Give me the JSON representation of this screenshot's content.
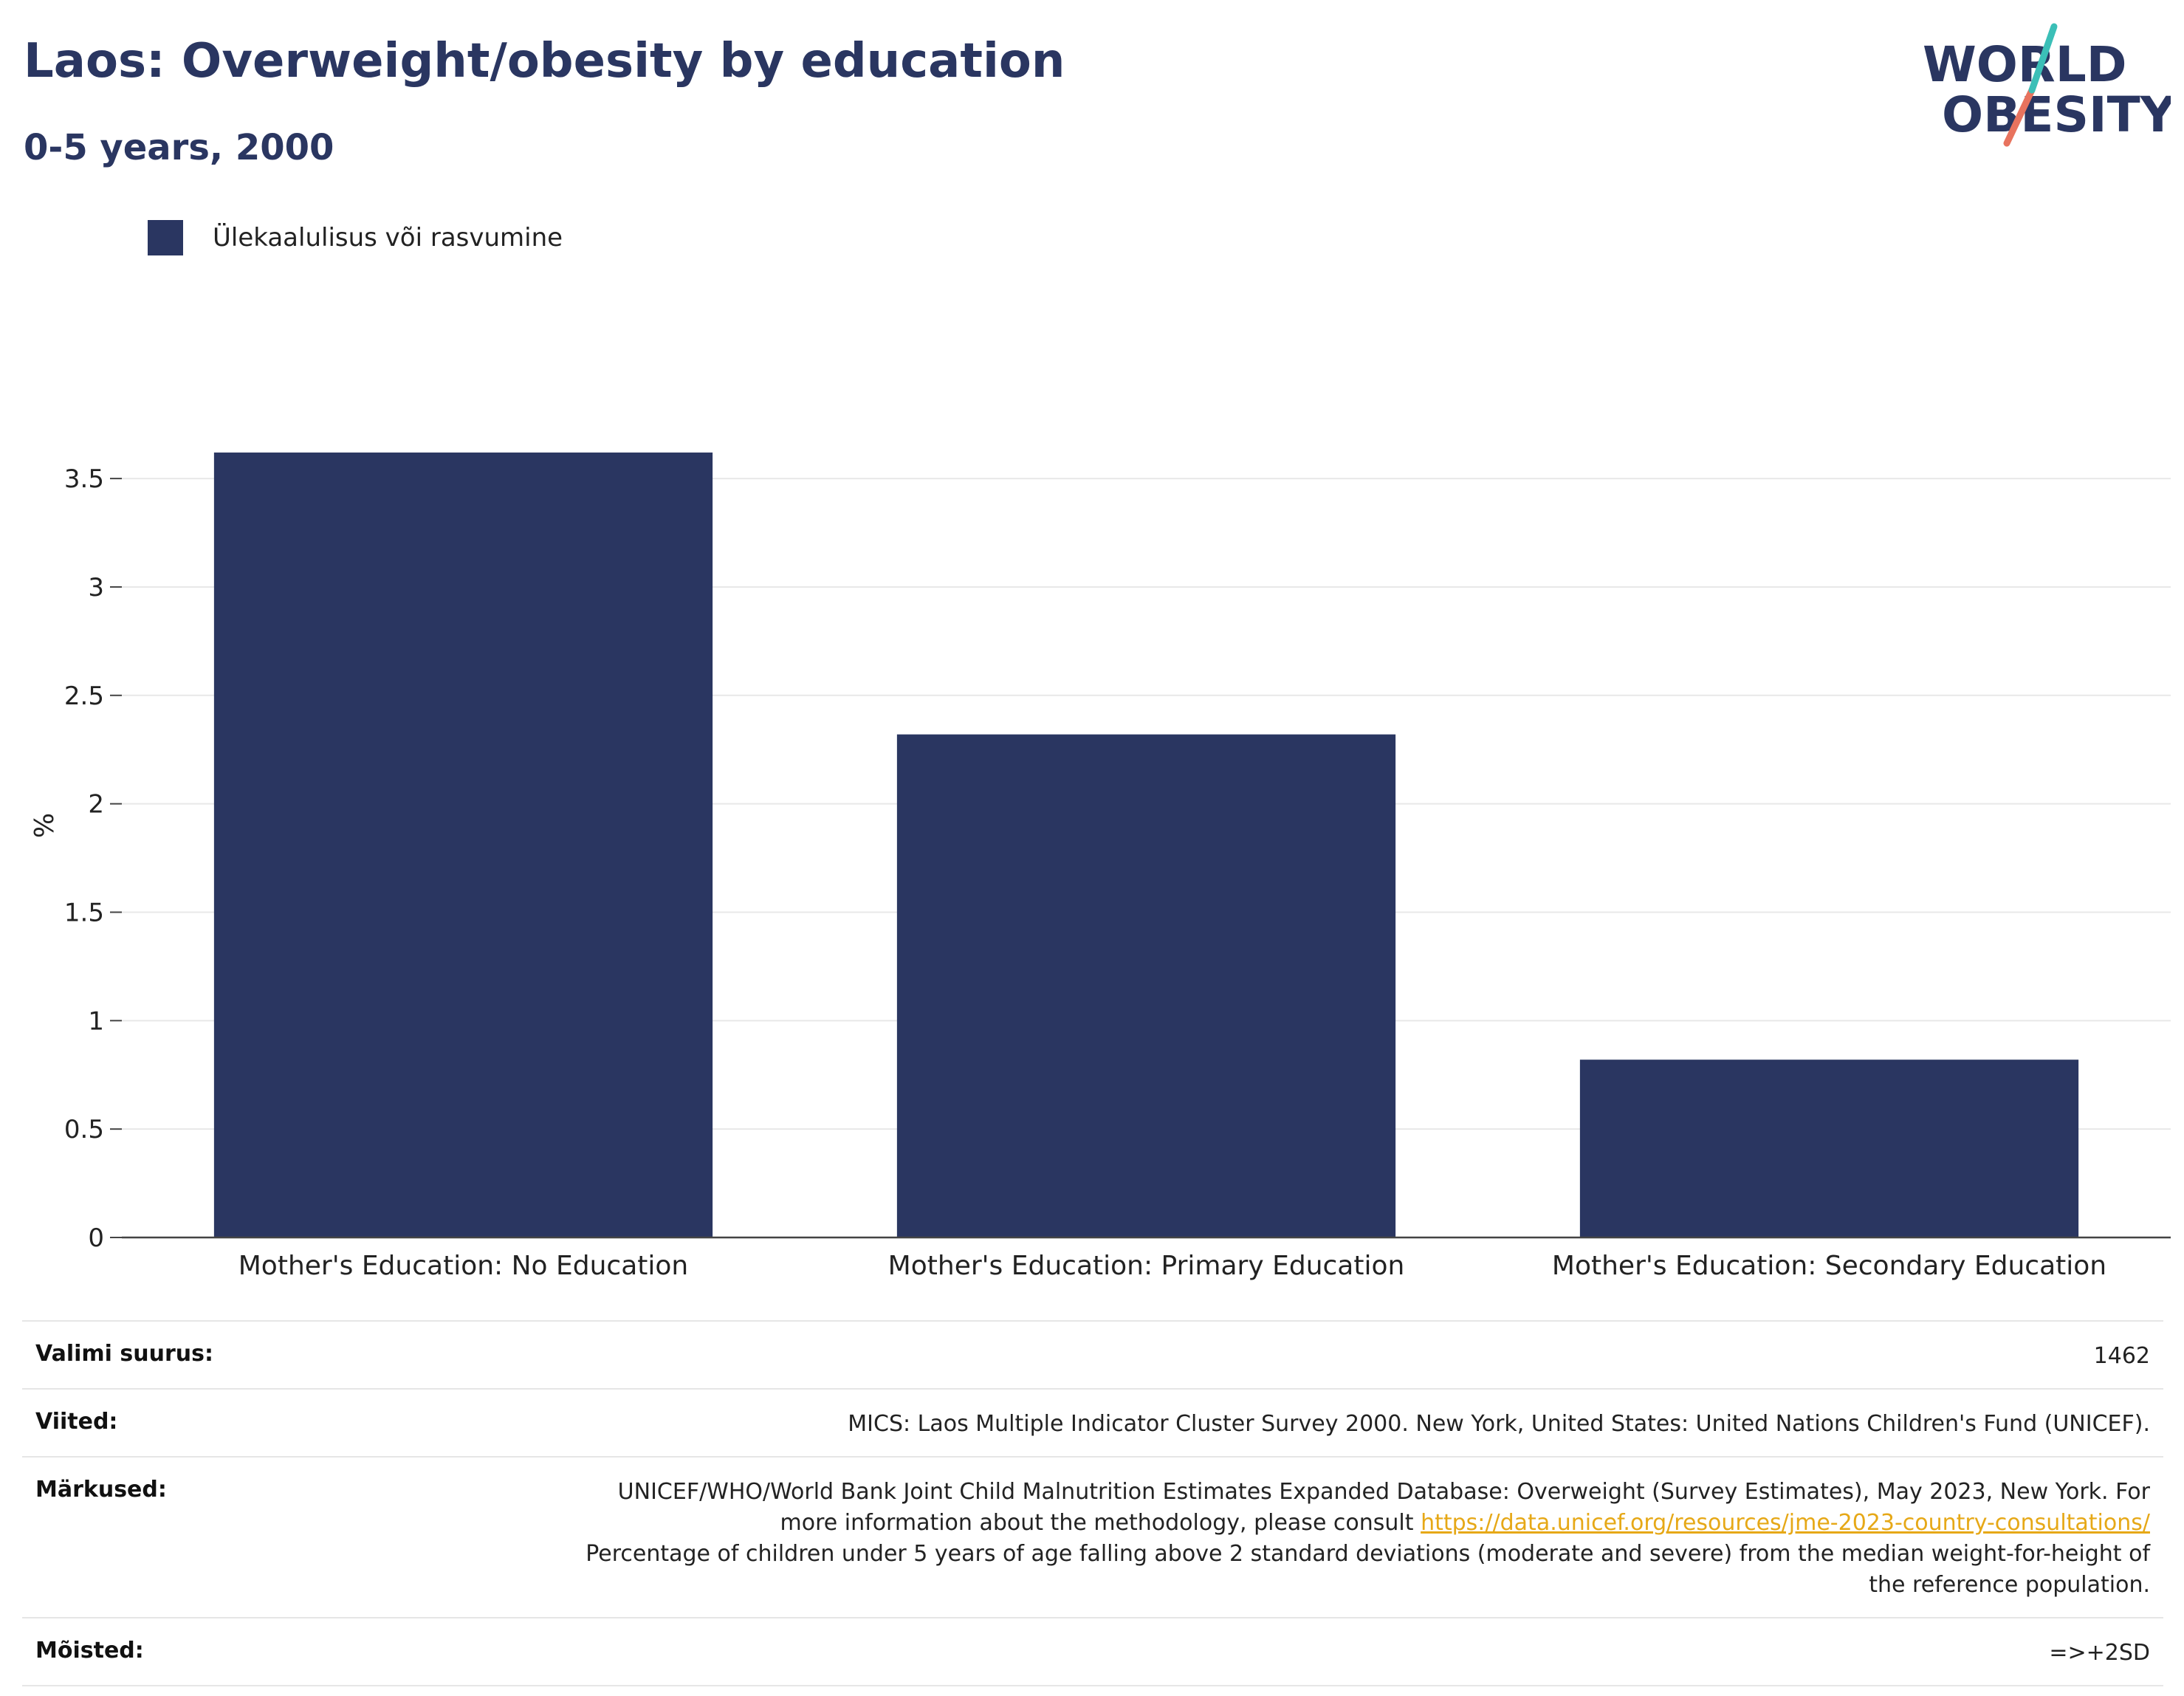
{
  "header": {
    "title": "Laos: Overweight/obesity by education",
    "subtitle": "0-5 years, 2000",
    "logo_line1": "WORLD",
    "logo_line2": "OBESITY"
  },
  "colors": {
    "bar": "#2a3661",
    "logo_teal": "#3bbfb7",
    "logo_coral": "#e8735e",
    "link": "#e6a817"
  },
  "chart_data": {
    "type": "bar",
    "categories": [
      "Mother's Education: No Education",
      "Mother's Education: Primary Education",
      "Mother's Education: Secondary Education"
    ],
    "series": [
      {
        "name": "Ülekaalulisus või rasvumine",
        "values": [
          3.62,
          2.32,
          0.82
        ]
      }
    ],
    "ylabel": "%",
    "ylim": [
      0,
      3.8
    ],
    "yticks": [
      0,
      0.5,
      1,
      1.5,
      2,
      2.5,
      3,
      3.5
    ],
    "ytick_labels": [
      "0",
      "0.5",
      "1",
      "1.5",
      "2",
      "2.5",
      "3",
      "3.5"
    ],
    "grid": true,
    "legend": "top-left"
  },
  "meta": {
    "sample_label": "Valimi suurus:",
    "sample_value": "1462",
    "refs_label": "Viited:",
    "refs_value": "MICS: Laos Multiple Indicator Cluster Survey 2000. New York, United States: United Nations Children's Fund (UNICEF).",
    "notes_label": "Märkused:",
    "notes_text_1": "UNICEF/WHO/World Bank Joint Child Malnutrition Estimates Expanded Database: Overweight (Survey Estimates), May 2023, New York. For more information about the methodology, please consult",
    "notes_link": "https://data.unicef.org/resources/jme-2023-country-consultations/",
    "notes_text_2": "Percentage of children under 5 years of age falling above 2 standard deviations (moderate and severe) from the median weight-for-height of the reference population.",
    "defs_label": "Mõisted:",
    "defs_value": "=>+2SD"
  }
}
